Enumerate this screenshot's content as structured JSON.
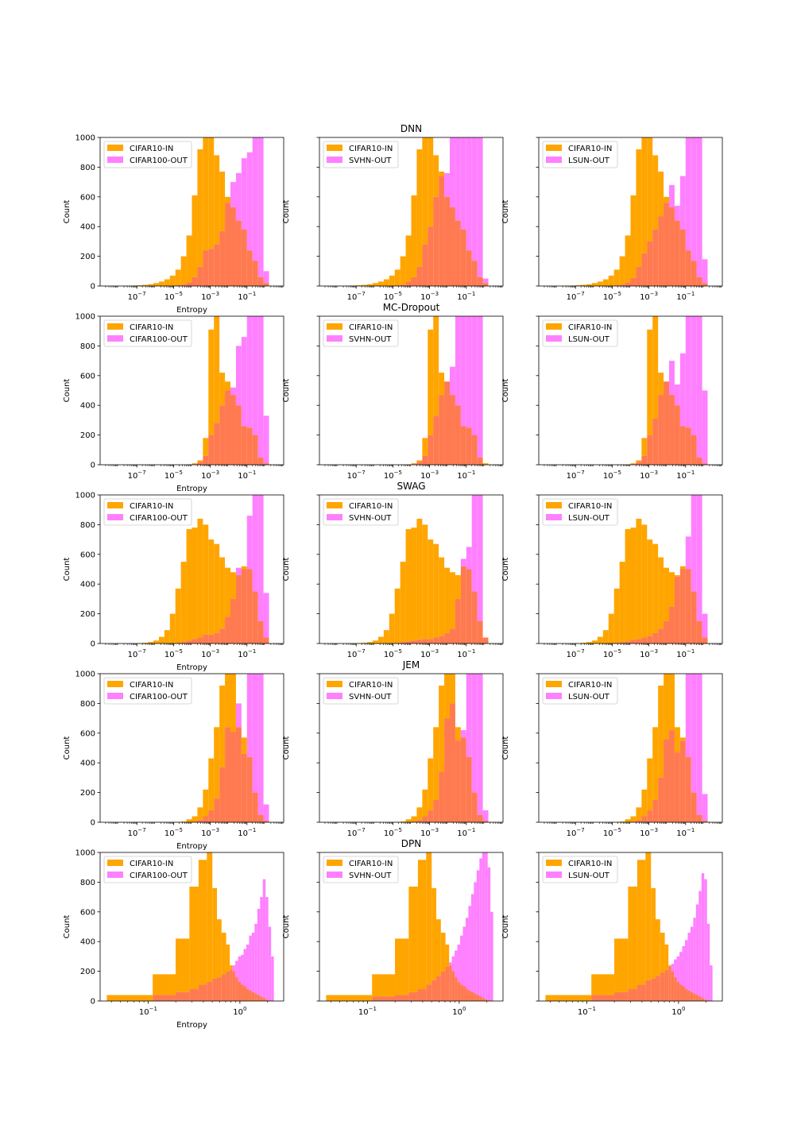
{
  "colors": {
    "in": "#ffa500",
    "out": "#ff80ff",
    "overlap": "#ff7a50"
  },
  "chart_data": {
    "type": "histogram",
    "ylabel": "Count",
    "xlabel": "Entropy",
    "ylim": [
      0,
      1000
    ],
    "yticks": [
      "0",
      "200",
      "400",
      "600",
      "800",
      "1000"
    ],
    "rows": [
      {
        "title": "DNN",
        "x_scale": "log",
        "x_range": [
          1e-09,
          10
        ],
        "xticks": [
          {
            "v": 1e-07,
            "label": "10^-7"
          },
          {
            "v": 1e-05,
            "label": "10^-5"
          },
          {
            "v": 0.001,
            "label": "10^-3"
          },
          {
            "v": 0.1,
            "label": "10^-1"
          }
        ],
        "bins": [
          -8.2,
          -7.9,
          -7.6,
          -7.3,
          -7.0,
          -6.7,
          -6.4,
          -6.1,
          -5.8,
          -5.5,
          -5.2,
          -4.9,
          -4.6,
          -4.3,
          -4.0,
          -3.7,
          -3.4,
          -3.1,
          -2.8,
          -2.5,
          -2.2,
          -1.9,
          -1.6,
          -1.3,
          -1.0,
          -0.7,
          -0.4,
          -0.1,
          0.2,
          0.5
        ],
        "in_counts": [
          0,
          0,
          2,
          3,
          5,
          8,
          12,
          20,
          30,
          45,
          70,
          110,
          200,
          340,
          610,
          920,
          1000,
          1000,
          880,
          770,
          600,
          530,
          440,
          380,
          240,
          170,
          60,
          20,
          0
        ],
        "out_counts": {
          "CIFAR100-OUT": [
            0,
            0,
            0,
            0,
            0,
            0,
            0,
            0,
            0,
            0,
            2,
            5,
            10,
            25,
            60,
            130,
            240,
            250,
            280,
            370,
            560,
            700,
            760,
            860,
            900,
            1000,
            1000,
            100,
            0
          ],
          "SVHN-OUT": [
            0,
            0,
            0,
            0,
            0,
            0,
            0,
            0,
            0,
            0,
            2,
            5,
            10,
            30,
            60,
            130,
            280,
            400,
            600,
            740,
            760,
            1000,
            1000,
            1000,
            1000,
            1000,
            1000,
            50,
            0
          ],
          "LSUN-OUT": [
            0,
            0,
            0,
            0,
            0,
            0,
            0,
            0,
            0,
            0,
            2,
            5,
            10,
            25,
            55,
            130,
            220,
            300,
            380,
            470,
            560,
            680,
            540,
            740,
            1000,
            1000,
            1000,
            180,
            0
          ]
        }
      },
      {
        "title": "MC-Dropout",
        "x_scale": "log",
        "x_range": [
          1e-09,
          10
        ],
        "xticks": [
          {
            "v": 1e-07,
            "label": "10^-7"
          },
          {
            "v": 1e-05,
            "label": "10^-5"
          },
          {
            "v": 0.001,
            "label": "10^-3"
          },
          {
            "v": 0.1,
            "label": "10^-1"
          }
        ],
        "bins": [
          -8.2,
          -7.9,
          -7.6,
          -7.3,
          -7.0,
          -6.7,
          -6.4,
          -6.1,
          -5.8,
          -5.5,
          -5.2,
          -4.9,
          -4.6,
          -4.3,
          -4.0,
          -3.7,
          -3.4,
          -3.1,
          -2.8,
          -2.5,
          -2.2,
          -1.9,
          -1.6,
          -1.3,
          -1.0,
          -0.7,
          -0.4,
          -0.1,
          0.2,
          0.5
        ],
        "in_counts": [
          0,
          0,
          0,
          0,
          0,
          0,
          0,
          0,
          0,
          0,
          0,
          0,
          0,
          2,
          10,
          30,
          180,
          910,
          1000,
          620,
          560,
          470,
          400,
          260,
          250,
          200,
          50,
          10,
          0
        ],
        "out_counts": {
          "CIFAR100-OUT": [
            0,
            0,
            0,
            0,
            0,
            0,
            0,
            0,
            0,
            0,
            0,
            0,
            0,
            0,
            5,
            20,
            60,
            200,
            280,
            400,
            500,
            520,
            800,
            860,
            1000,
            1000,
            1000,
            330,
            0
          ],
          "SVHN-OUT": [
            0,
            0,
            0,
            0,
            0,
            0,
            0,
            0,
            0,
            0,
            0,
            0,
            0,
            0,
            5,
            20,
            60,
            200,
            330,
            470,
            560,
            660,
            1000,
            1000,
            1000,
            1000,
            1000,
            0,
            0
          ],
          "LSUN-OUT": [
            0,
            0,
            0,
            0,
            0,
            0,
            0,
            0,
            0,
            0,
            0,
            0,
            0,
            0,
            5,
            20,
            60,
            200,
            310,
            470,
            560,
            700,
            540,
            750,
            1000,
            1000,
            1000,
            500,
            0
          ]
        }
      },
      {
        "title": "SWAG",
        "x_scale": "log",
        "x_range": [
          1e-09,
          10
        ],
        "xticks": [
          {
            "v": 1e-07,
            "label": "10^-7"
          },
          {
            "v": 1e-05,
            "label": "10^-5"
          },
          {
            "v": 0.001,
            "label": "10^-3"
          },
          {
            "v": 0.1,
            "label": "10^-1"
          }
        ],
        "bins": [
          -8.2,
          -7.9,
          -7.6,
          -7.3,
          -7.0,
          -6.7,
          -6.4,
          -6.1,
          -5.8,
          -5.5,
          -5.2,
          -4.9,
          -4.6,
          -4.3,
          -4.0,
          -3.7,
          -3.4,
          -3.1,
          -2.8,
          -2.5,
          -2.2,
          -1.9,
          -1.6,
          -1.3,
          -1.0,
          -0.7,
          -0.4,
          -0.1,
          0.2,
          0.5
        ],
        "in_counts": [
          0,
          0,
          0,
          0,
          2,
          5,
          10,
          20,
          45,
          90,
          200,
          370,
          550,
          770,
          780,
          840,
          800,
          700,
          670,
          580,
          510,
          480,
          460,
          520,
          500,
          350,
          150,
          40,
          0
        ],
        "out_counts": {
          "CIFAR100-OUT": [
            0,
            0,
            0,
            0,
            0,
            0,
            0,
            0,
            0,
            0,
            0,
            5,
            10,
            20,
            30,
            40,
            60,
            60,
            70,
            100,
            180,
            300,
            510,
            500,
            860,
            1000,
            1000,
            340,
            0
          ],
          "SVHN-OUT": [
            0,
            0,
            0,
            0,
            0,
            0,
            0,
            0,
            0,
            0,
            0,
            5,
            10,
            15,
            20,
            25,
            30,
            30,
            40,
            50,
            70,
            100,
            300,
            570,
            650,
            1000,
            1000,
            40,
            0
          ],
          "LSUN-OUT": [
            0,
            0,
            0,
            0,
            0,
            0,
            0,
            0,
            0,
            0,
            0,
            5,
            10,
            15,
            25,
            30,
            40,
            50,
            70,
            100,
            150,
            250,
            450,
            500,
            720,
            1000,
            1000,
            200,
            0
          ]
        }
      },
      {
        "title": "JEM",
        "x_scale": "log",
        "x_range": [
          1e-09,
          10
        ],
        "xticks": [
          {
            "v": 1e-07,
            "label": "10^-7"
          },
          {
            "v": 1e-05,
            "label": "10^-5"
          },
          {
            "v": 0.001,
            "label": "10^-3"
          },
          {
            "v": 0.1,
            "label": "10^-1"
          }
        ],
        "bins": [
          -8.2,
          -7.9,
          -7.6,
          -7.3,
          -7.0,
          -6.7,
          -6.4,
          -6.1,
          -5.8,
          -5.5,
          -5.2,
          -4.9,
          -4.6,
          -4.3,
          -4.0,
          -3.7,
          -3.4,
          -3.1,
          -2.8,
          -2.5,
          -2.2,
          -1.9,
          -1.6,
          -1.3,
          -1.0,
          -0.7,
          -0.4,
          -0.1,
          0.2,
          0.5
        ],
        "in_counts": [
          0,
          0,
          0,
          0,
          0,
          0,
          0,
          0,
          0,
          0,
          0,
          2,
          5,
          20,
          40,
          100,
          220,
          430,
          640,
          920,
          1000,
          1000,
          640,
          570,
          440,
          200,
          50,
          10,
          0
        ],
        "out_counts": {
          "CIFAR100-OUT": [
            0,
            0,
            0,
            0,
            0,
            0,
            0,
            0,
            0,
            0,
            0,
            0,
            0,
            0,
            5,
            15,
            40,
            80,
            160,
            370,
            640,
            610,
            800,
            460,
            1000,
            1000,
            1000,
            120,
            0
          ],
          "SVHN-OUT": [
            0,
            0,
            0,
            0,
            0,
            0,
            0,
            0,
            0,
            0,
            0,
            0,
            0,
            0,
            5,
            15,
            40,
            80,
            150,
            340,
            700,
            800,
            550,
            620,
            1000,
            1000,
            1000,
            80,
            0
          ],
          "LSUN-OUT": [
            0,
            0,
            0,
            0,
            0,
            0,
            0,
            0,
            0,
            0,
            0,
            0,
            0,
            0,
            5,
            15,
            40,
            80,
            150,
            300,
            560,
            620,
            470,
            550,
            1000,
            1000,
            1000,
            190,
            0
          ]
        }
      },
      {
        "title": "DPN",
        "x_scale": "log",
        "x_range": [
          0.03,
          3.0
        ],
        "xticks": [
          {
            "v": 0.1,
            "label": "10^-1"
          },
          {
            "v": 1,
            "label": "10^0"
          }
        ],
        "bins": [
          -1.45,
          -0.95,
          -0.7,
          -0.55,
          -0.45,
          -0.36,
          -0.3,
          -0.25,
          -0.2,
          -0.15,
          -0.11,
          -0.08,
          -0.05,
          -0.02,
          0.01,
          0.04,
          0.07,
          0.1,
          0.13,
          0.16,
          0.19,
          0.22,
          0.25,
          0.28,
          0.31,
          0.34,
          0.37,
          0.4
        ],
        "in_counts": [
          40,
          180,
          420,
          770,
          950,
          1000,
          760,
          550,
          460,
          380,
          240,
          200,
          160,
          130,
          110,
          100,
          80,
          70,
          60,
          50,
          40,
          30,
          20,
          10,
          5,
          2,
          0
        ],
        "out_counts": {
          "CIFAR100-OUT": [
            0,
            40,
            60,
            80,
            110,
            130,
            150,
            160,
            180,
            200,
            210,
            240,
            270,
            300,
            310,
            350,
            380,
            440,
            460,
            520,
            620,
            700,
            820,
            700,
            500,
            300,
            0
          ],
          "SVHN-OUT": [
            0,
            30,
            40,
            60,
            80,
            110,
            140,
            170,
            200,
            230,
            260,
            300,
            340,
            380,
            440,
            500,
            560,
            640,
            720,
            800,
            880,
            960,
            1000,
            1000,
            900,
            600,
            0
          ],
          "LSUN-OUT": [
            0,
            40,
            60,
            80,
            110,
            140,
            150,
            170,
            190,
            210,
            230,
            250,
            280,
            300,
            330,
            370,
            410,
            460,
            500,
            560,
            650,
            740,
            860,
            820,
            520,
            240,
            0
          ]
        }
      }
    ],
    "columns": [
      {
        "in_label": "CIFAR10-IN",
        "out_label": "CIFAR100-OUT"
      },
      {
        "in_label": "CIFAR10-IN",
        "out_label": "SVHN-OUT"
      },
      {
        "in_label": "CIFAR10-IN",
        "out_label": "LSUN-OUT"
      }
    ]
  }
}
